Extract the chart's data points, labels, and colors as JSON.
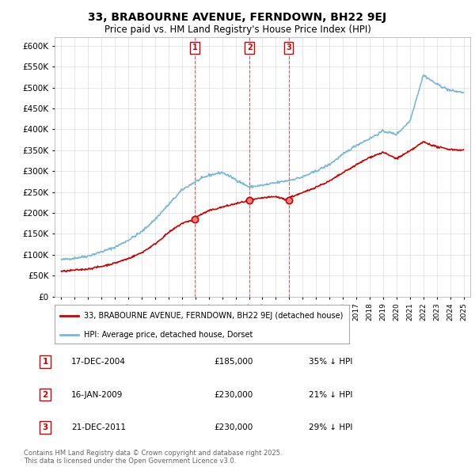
{
  "title": "33, BRABOURNE AVENUE, FERNDOWN, BH22 9EJ",
  "subtitle": "Price paid vs. HM Land Registry's House Price Index (HPI)",
  "ylim": [
    0,
    620000
  ],
  "yticks": [
    0,
    50000,
    100000,
    150000,
    200000,
    250000,
    300000,
    350000,
    400000,
    450000,
    500000,
    550000,
    600000
  ],
  "ytick_labels": [
    "£0",
    "£50K",
    "£100K",
    "£150K",
    "£200K",
    "£250K",
    "£300K",
    "£350K",
    "£400K",
    "£450K",
    "£500K",
    "£550K",
    "£600K"
  ],
  "hpi_color": "#7ab8d9",
  "price_color": "#cc0000",
  "bg_color": "#ffffff",
  "grid_color": "#dddddd",
  "legend_label_price": "33, BRABOURNE AVENUE, FERNDOWN, BH22 9EJ (detached house)",
  "legend_label_hpi": "HPI: Average price, detached house, Dorset",
  "transactions": [
    {
      "num": 1,
      "date_label": "17-DEC-2004",
      "date_x": 2004.96,
      "price": 185000,
      "hpi_pct": "35% ↓ HPI"
    },
    {
      "num": 2,
      "date_label": "16-JAN-2009",
      "date_x": 2009.04,
      "price": 230000,
      "hpi_pct": "21% ↓ HPI"
    },
    {
      "num": 3,
      "date_label": "21-DEC-2011",
      "date_x": 2011.96,
      "price": 230000,
      "hpi_pct": "29% ↓ HPI"
    }
  ],
  "footnote": "Contains HM Land Registry data © Crown copyright and database right 2025.\nThis data is licensed under the Open Government Licence v3.0.",
  "xlim_start": 1994.5,
  "xlim_end": 2025.5,
  "xticks": [
    1995,
    1996,
    1997,
    1998,
    1999,
    2000,
    2001,
    2002,
    2003,
    2004,
    2005,
    2006,
    2007,
    2008,
    2009,
    2010,
    2011,
    2012,
    2013,
    2014,
    2015,
    2016,
    2017,
    2018,
    2019,
    2020,
    2021,
    2022,
    2023,
    2024,
    2025
  ]
}
